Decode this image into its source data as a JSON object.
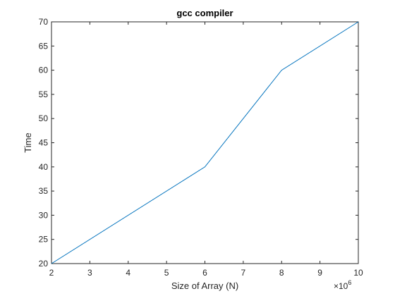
{
  "chart_data": {
    "type": "line",
    "title": "gcc compiler",
    "xlabel": "Size of Array (N)",
    "ylabel": "Time",
    "x_multiplier_base": "×10",
    "x_multiplier_exp": "6",
    "xlim": [
      2,
      10
    ],
    "ylim": [
      20,
      70
    ],
    "xticks": [
      2,
      3,
      4,
      5,
      6,
      7,
      8,
      9,
      10
    ],
    "yticks": [
      20,
      25,
      30,
      35,
      40,
      45,
      50,
      55,
      60,
      65,
      70
    ],
    "grid": false,
    "series": [
      {
        "x": [
          2,
          6,
          8,
          10
        ],
        "y": [
          20,
          40,
          60,
          70
        ],
        "color": "#0072bd"
      }
    ]
  }
}
